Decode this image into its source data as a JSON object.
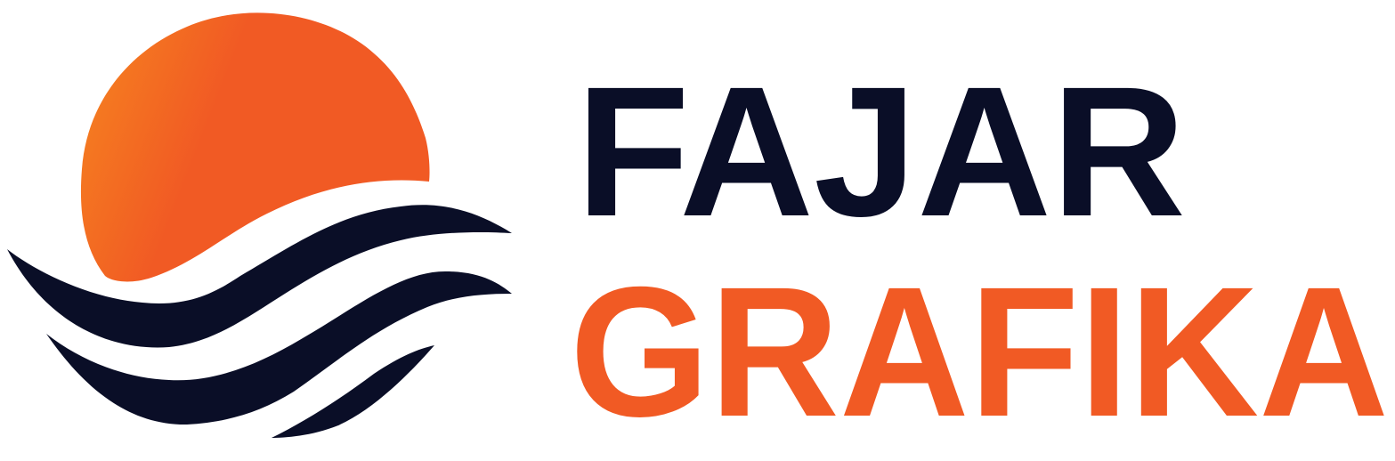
{
  "logo": {
    "line1": "FAJAR",
    "line2": "GRAFIKA"
  }
}
